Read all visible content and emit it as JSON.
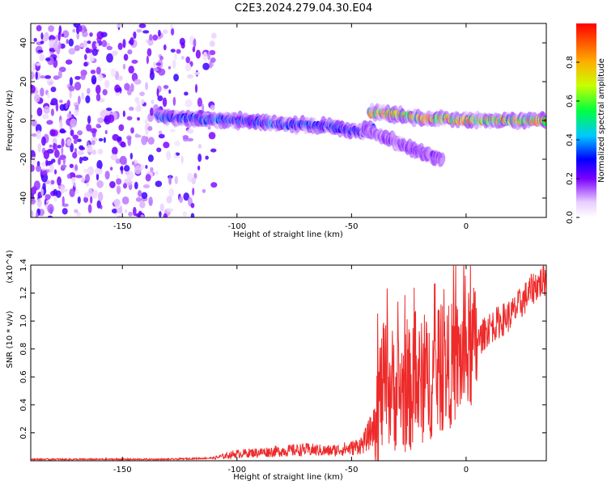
{
  "title": "C2E3.2024.279.04.30.E04",
  "colors": {
    "snr_line": "#ee2a2a",
    "frame": "#000000"
  },
  "chart_data": [
    {
      "type": "heatmap",
      "xlabel": "Height of straight line (km)",
      "ylabel": "Frequency (Hz)",
      "xlim": [
        -190,
        35
      ],
      "ylim": [
        -50,
        50
      ],
      "xticks": [
        -150,
        -100,
        -50,
        0
      ],
      "yticks": [
        -40,
        -20,
        0,
        20,
        40
      ],
      "colorbar": {
        "label": "Normalized spectral amplitude",
        "ticks": [
          0.0,
          0.2,
          0.4,
          0.6,
          0.8
        ],
        "range": [
          0,
          1
        ],
        "colormap": "rainbow (white-violet-blue-cyan-green-yellow-red)"
      },
      "features": [
        {
          "kind": "noise",
          "x_range": [
            -190,
            -110
          ],
          "y_range": [
            -50,
            50
          ],
          "amplitude": 0.05
        },
        {
          "kind": "ridge",
          "points": [
            [
              -135,
              2
            ],
            [
              -120,
              1
            ],
            [
              -100,
              0
            ],
            [
              -80,
              -2
            ],
            [
              -60,
              -3
            ],
            [
              -45,
              -6
            ],
            [
              -40,
              -4
            ]
          ],
          "amplitude": 0.4
        },
        {
          "kind": "ridge",
          "points": [
            [
              -42,
              4
            ],
            [
              -30,
              3
            ],
            [
              -20,
              1
            ],
            [
              -10,
              1
            ],
            [
              0,
              0
            ],
            [
              10,
              0
            ],
            [
              20,
              0
            ],
            [
              35,
              0
            ]
          ],
          "amplitude": 0.9
        },
        {
          "kind": "ridge",
          "points": [
            [
              -45,
              -4
            ],
            [
              -35,
              -9
            ],
            [
              -25,
              -14
            ],
            [
              -15,
              -18
            ],
            [
              -10,
              -21
            ]
          ],
          "amplitude": 0.2
        }
      ]
    },
    {
      "type": "line",
      "xlabel": "Height of straight line (km)",
      "ylabel": "SNR (10 * v/v)",
      "y_multiplier": "(x10^4)",
      "xlim": [
        -190,
        35
      ],
      "ylim": [
        0,
        1.4
      ],
      "xticks": [
        -150,
        -100,
        -50,
        0
      ],
      "yticks": [
        0.2,
        0.4,
        0.6,
        0.8,
        1.0,
        1.2,
        1.4
      ],
      "series": [
        {
          "x": [
            -190,
            -170,
            -150,
            -130,
            -110,
            -100,
            -90,
            -80,
            -70,
            -60,
            -50,
            -45,
            -40,
            -38,
            -35,
            -30,
            -25,
            -20,
            -15,
            -10,
            -5,
            0,
            5,
            10,
            15,
            20,
            25,
            30,
            35
          ],
          "values": [
            0.01,
            0.01,
            0.01,
            0.01,
            0.02,
            0.05,
            0.06,
            0.07,
            0.08,
            0.07,
            0.09,
            0.12,
            0.25,
            0.45,
            0.55,
            0.5,
            0.5,
            0.55,
            0.6,
            0.65,
            0.7,
            0.75,
            0.85,
            0.95,
            1.0,
            1.05,
            1.15,
            1.25,
            1.3
          ]
        }
      ]
    }
  ]
}
